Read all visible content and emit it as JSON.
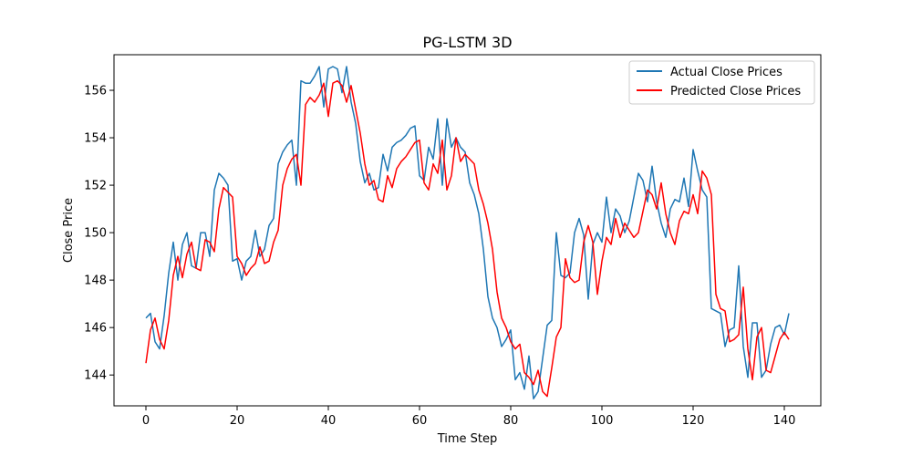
{
  "chart_data": {
    "type": "line",
    "title": "PG-LSTM 3D",
    "xlabel": "Time Step",
    "ylabel": "Close Price",
    "xlim": [
      -7,
      148
    ],
    "ylim": [
      142.7,
      157.5
    ],
    "xticks": [
      0,
      20,
      40,
      60,
      80,
      100,
      120,
      140
    ],
    "yticks": [
      144,
      146,
      148,
      150,
      152,
      154,
      156
    ],
    "grid": false,
    "legend_position": "top-right",
    "series": [
      {
        "name": "Actual Close Prices",
        "color": "#1f77b4",
        "x": [
          0,
          1,
          2,
          3,
          4,
          5,
          6,
          7,
          8,
          9,
          10,
          11,
          12,
          13,
          14,
          15,
          16,
          17,
          18,
          19,
          20,
          21,
          22,
          23,
          24,
          25,
          26,
          27,
          28,
          29,
          30,
          31,
          32,
          33,
          34,
          35,
          36,
          37,
          38,
          39,
          40,
          41,
          42,
          43,
          44,
          45,
          46,
          47,
          48,
          49,
          50,
          51,
          52,
          53,
          54,
          55,
          56,
          57,
          58,
          59,
          60,
          61,
          62,
          63,
          64,
          65,
          66,
          67,
          68,
          69,
          70,
          71,
          72,
          73,
          74,
          75,
          76,
          77,
          78,
          79,
          80,
          81,
          82,
          83,
          84,
          85,
          86,
          87,
          88,
          89,
          90,
          91,
          92,
          93,
          94,
          95,
          96,
          97,
          98,
          99,
          100,
          101,
          102,
          103,
          104,
          105,
          106,
          107,
          108,
          109,
          110,
          111,
          112,
          113,
          114,
          115,
          116,
          117,
          118,
          119,
          120,
          121,
          122,
          123,
          124,
          125,
          126,
          127,
          128,
          129,
          130,
          131,
          132,
          133,
          134,
          135,
          136,
          137,
          138,
          139,
          140,
          141
        ],
        "values": [
          146.4,
          146.6,
          145.4,
          145.1,
          146.5,
          148.3,
          149.6,
          148.0,
          149.5,
          150.0,
          148.6,
          148.5,
          150.0,
          150.0,
          149.0,
          151.8,
          152.5,
          152.3,
          152.0,
          148.8,
          148.9,
          148.0,
          148.8,
          149.0,
          150.1,
          149.0,
          149.3,
          150.3,
          150.6,
          152.9,
          153.4,
          153.7,
          153.9,
          152.0,
          156.4,
          156.3,
          156.3,
          156.6,
          157.0,
          155.3,
          156.9,
          157.0,
          156.9,
          155.9,
          157.0,
          155.5,
          154.6,
          153.0,
          152.1,
          152.5,
          151.8,
          151.9,
          153.3,
          152.6,
          153.6,
          153.8,
          153.9,
          154.1,
          154.4,
          154.5,
          152.4,
          152.2,
          153.6,
          153.1,
          154.8,
          152.0,
          154.8,
          153.6,
          154.0,
          153.6,
          153.4,
          152.1,
          151.6,
          150.8,
          149.3,
          147.3,
          146.4,
          146.0,
          145.2,
          145.5,
          145.9,
          143.8,
          144.1,
          143.4,
          144.8,
          143.0,
          143.3,
          144.7,
          146.1,
          146.3,
          150.0,
          148.2,
          148.1,
          148.3,
          150.0,
          150.6,
          149.9,
          147.2,
          149.5,
          150.0,
          149.6,
          151.5,
          150.0,
          151.0,
          150.7,
          150.0,
          150.5,
          151.5,
          152.5,
          152.2,
          151.3,
          152.8,
          151.3,
          150.4,
          149.8,
          151.0,
          151.4,
          151.3,
          152.3,
          151.1,
          153.5,
          152.6,
          151.8,
          151.5,
          146.8,
          146.7,
          146.6,
          145.2,
          145.9,
          146.0,
          148.6,
          145.2,
          143.9,
          146.2,
          146.2,
          143.9,
          144.2,
          145.3,
          146.0,
          146.1,
          145.7,
          146.6
        ]
      },
      {
        "name": "Predicted Close Prices",
        "color": "#ff0000",
        "x": [
          0,
          1,
          2,
          3,
          4,
          5,
          6,
          7,
          8,
          9,
          10,
          11,
          12,
          13,
          14,
          15,
          16,
          17,
          18,
          19,
          20,
          21,
          22,
          23,
          24,
          25,
          26,
          27,
          28,
          29,
          30,
          31,
          32,
          33,
          34,
          35,
          36,
          37,
          38,
          39,
          40,
          41,
          42,
          43,
          44,
          45,
          46,
          47,
          48,
          49,
          50,
          51,
          52,
          53,
          54,
          55,
          56,
          57,
          58,
          59,
          60,
          61,
          62,
          63,
          64,
          65,
          66,
          67,
          68,
          69,
          70,
          71,
          72,
          73,
          74,
          75,
          76,
          77,
          78,
          79,
          80,
          81,
          82,
          83,
          84,
          85,
          86,
          87,
          88,
          89,
          90,
          91,
          92,
          93,
          94,
          95,
          96,
          97,
          98,
          99,
          100,
          101,
          102,
          103,
          104,
          105,
          106,
          107,
          108,
          109,
          110,
          111,
          112,
          113,
          114,
          115,
          116,
          117,
          118,
          119,
          120,
          121,
          122,
          123,
          124,
          125,
          126,
          127,
          128,
          129,
          130,
          131,
          132,
          133,
          134,
          135,
          136,
          137,
          138,
          139,
          140,
          141
        ],
        "values": [
          144.5,
          145.9,
          146.4,
          145.5,
          145.1,
          146.3,
          148.2,
          149.0,
          148.1,
          149.1,
          149.6,
          148.5,
          148.4,
          149.7,
          149.6,
          149.2,
          151.0,
          151.9,
          151.7,
          151.5,
          149.0,
          148.7,
          148.2,
          148.5,
          148.7,
          149.4,
          148.7,
          148.8,
          149.6,
          150.1,
          152.0,
          152.7,
          153.1,
          153.3,
          152.0,
          155.4,
          155.7,
          155.5,
          155.8,
          156.3,
          154.9,
          156.3,
          156.4,
          156.2,
          155.5,
          156.2,
          155.2,
          154.2,
          152.9,
          152.0,
          152.2,
          151.4,
          151.3,
          152.4,
          151.9,
          152.7,
          153.0,
          153.2,
          153.5,
          153.8,
          153.9,
          152.1,
          151.8,
          152.9,
          152.5,
          153.9,
          151.8,
          152.4,
          154.0,
          153.0,
          153.3,
          153.1,
          152.9,
          151.8,
          151.2,
          150.4,
          149.3,
          147.5,
          146.4,
          146.0,
          145.4,
          145.1,
          145.3,
          144.1,
          143.9,
          143.6,
          144.2,
          143.3,
          143.1,
          144.3,
          145.6,
          146.0,
          148.9,
          148.1,
          147.9,
          148.0,
          149.6,
          150.3,
          149.6,
          147.4,
          148.8,
          149.8,
          149.5,
          150.6,
          149.8,
          150.4,
          150.1,
          149.8,
          150.0,
          150.9,
          151.8,
          151.6,
          151.0,
          152.1,
          150.8,
          150.0,
          149.5,
          150.5,
          150.9,
          150.8,
          151.6,
          150.8,
          152.6,
          152.3,
          151.6,
          147.4,
          146.8,
          146.7,
          145.4,
          145.5,
          145.7,
          147.7,
          145.1,
          143.8,
          145.6,
          146.0,
          144.2,
          144.1,
          144.8,
          145.5,
          145.8,
          145.5
        ]
      }
    ]
  }
}
